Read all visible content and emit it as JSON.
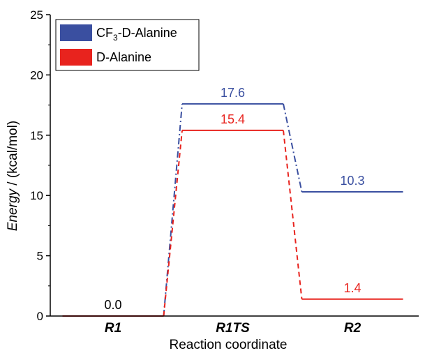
{
  "chart_data": {
    "type": "line",
    "title": "",
    "xlabel": "Reaction coordinate",
    "ylabel_italic": "Energy",
    "ylabel_rest": " / (kcal/mol)",
    "ylim": [
      0,
      25
    ],
    "yticks": [
      0,
      5,
      10,
      15,
      20,
      25
    ],
    "categories": [
      "R1",
      "R1TS",
      "R2"
    ],
    "legend_position": "top-left",
    "grid": false,
    "series": [
      {
        "name_parts": [
          "CF",
          "3",
          "-D-Alanine"
        ],
        "color": "#3a4fa0",
        "connector_style": "dash-dot",
        "values": [
          0.0,
          17.6,
          10.3
        ],
        "labels": [
          "",
          "17.6",
          "10.3"
        ]
      },
      {
        "name": "D-Alanine",
        "color": "#e8231e",
        "connector_style": "dashed",
        "values": [
          0.0,
          15.4,
          1.4
        ],
        "labels": [
          "0.0",
          "15.4",
          "1.4"
        ]
      }
    ]
  }
}
